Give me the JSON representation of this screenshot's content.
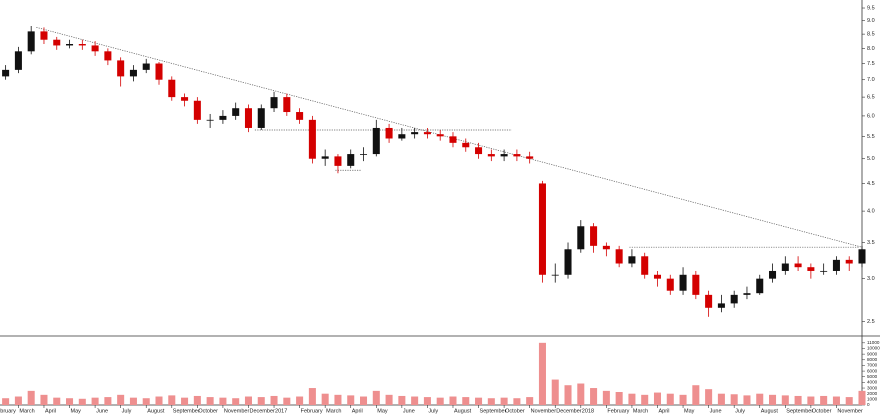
{
  "chart_data": {
    "type": "candlestick",
    "x": [
      -0.5,
      0,
      0.5,
      1,
      1.5,
      2,
      2.5,
      3,
      3.5,
      4,
      4.5,
      5,
      5.5,
      6,
      6.5,
      7,
      7.5,
      8,
      8.5,
      9,
      9.5,
      10,
      10.5,
      11,
      11.5,
      12,
      12.5,
      13,
      13.5,
      14,
      14.5,
      15,
      15.5,
      16,
      16.5,
      17,
      17.5,
      18,
      18.5,
      19,
      19.5,
      20,
      20.5,
      21,
      21.5,
      22,
      22.5,
      23,
      23.5,
      24,
      24.5,
      25,
      25.5,
      26,
      26.5,
      27,
      27.5,
      28,
      28.5,
      29,
      29.5,
      30,
      30.5,
      31,
      31.5,
      32,
      32.5,
      33
    ],
    "open": [
      7.1,
      7.3,
      7.9,
      8.6,
      8.3,
      8.1,
      8.15,
      8.1,
      7.9,
      7.6,
      7.1,
      7.3,
      7.5,
      7.0,
      6.5,
      6.4,
      5.9,
      5.9,
      6.0,
      6.2,
      5.7,
      6.2,
      6.5,
      6.1,
      5.9,
      5.0,
      5.05,
      4.85,
      5.1,
      5.1,
      5.7,
      5.45,
      5.55,
      5.6,
      5.55,
      5.5,
      5.35,
      5.25,
      5.1,
      5.05,
      5.1,
      5.05,
      4.5,
      3.05,
      3.05,
      3.4,
      3.75,
      3.45,
      3.4,
      3.2,
      3.3,
      3.05,
      3.0,
      2.85,
      3.05,
      2.8,
      2.65,
      2.7,
      2.8,
      2.82,
      3.0,
      3.1,
      3.2,
      3.15,
      3.1,
      3.1,
      3.25,
      3.2
    ],
    "high": [
      7.45,
      8.05,
      8.8,
      8.75,
      8.4,
      8.3,
      8.3,
      8.25,
      8.0,
      7.7,
      7.45,
      7.65,
      7.55,
      7.1,
      6.6,
      6.5,
      6.05,
      6.15,
      6.35,
      6.3,
      6.3,
      6.65,
      6.6,
      6.2,
      6.0,
      5.2,
      5.1,
      5.2,
      5.25,
      5.9,
      5.8,
      5.7,
      5.7,
      5.7,
      5.65,
      5.6,
      5.45,
      5.35,
      5.2,
      5.2,
      5.2,
      5.15,
      4.55,
      3.2,
      3.5,
      3.85,
      3.8,
      3.5,
      3.45,
      3.4,
      3.35,
      3.1,
      3.05,
      3.15,
      3.1,
      2.85,
      2.8,
      2.85,
      2.9,
      3.05,
      3.2,
      3.3,
      3.3,
      3.2,
      3.2,
      3.3,
      3.3,
      3.45
    ],
    "low": [
      7.0,
      7.2,
      7.8,
      8.15,
      7.95,
      8.0,
      7.95,
      7.75,
      7.45,
      6.8,
      6.95,
      7.2,
      6.85,
      6.4,
      6.25,
      5.8,
      5.7,
      5.8,
      5.9,
      5.6,
      5.65,
      6.1,
      6.0,
      5.8,
      4.9,
      4.85,
      4.7,
      4.8,
      4.95,
      5.05,
      5.35,
      5.4,
      5.45,
      5.45,
      5.4,
      5.25,
      5.15,
      5.0,
      4.95,
      4.95,
      4.95,
      4.9,
      2.95,
      2.95,
      3.0,
      3.35,
      3.35,
      3.3,
      3.15,
      3.15,
      3.0,
      2.9,
      2.8,
      2.8,
      2.75,
      2.55,
      2.6,
      2.65,
      2.75,
      2.8,
      2.95,
      3.05,
      3.1,
      3.0,
      3.05,
      3.05,
      3.1,
      3.15
    ],
    "close": [
      7.3,
      7.9,
      8.6,
      8.3,
      8.1,
      8.15,
      8.1,
      7.9,
      7.6,
      7.1,
      7.3,
      7.5,
      7.0,
      6.5,
      6.4,
      5.9,
      5.9,
      6.0,
      6.2,
      5.7,
      6.2,
      6.5,
      6.1,
      5.9,
      5.0,
      5.05,
      4.85,
      5.1,
      5.1,
      5.7,
      5.45,
      5.55,
      5.6,
      5.55,
      5.5,
      5.35,
      5.25,
      5.1,
      5.05,
      5.1,
      5.05,
      5.0,
      3.05,
      3.05,
      3.4,
      3.75,
      3.45,
      3.4,
      3.2,
      3.3,
      3.05,
      3.0,
      2.85,
      3.05,
      2.8,
      2.65,
      2.7,
      2.8,
      2.82,
      3.0,
      3.1,
      3.2,
      3.15,
      3.1,
      3.1,
      3.25,
      3.2,
      3.4
    ],
    "volume": [
      1200,
      1500,
      2500,
      1800,
      1300,
      1200,
      1100,
      1300,
      1400,
      1800,
      1300,
      1200,
      1500,
      1700,
      1300,
      1600,
      1400,
      1300,
      1200,
      1500,
      1400,
      1600,
      1300,
      1500,
      3000,
      2000,
      1800,
      1700,
      1500,
      2500,
      1800,
      1600,
      1500,
      1400,
      1300,
      1500,
      1400,
      1300,
      1200,
      1300,
      1200,
      1400,
      11000,
      4500,
      3500,
      3800,
      3000,
      2500,
      2300,
      2000,
      1800,
      2200,
      2000,
      1800,
      3500,
      2800,
      2000,
      1900,
      1700,
      2000,
      1800,
      1700,
      1600,
      1500,
      1600,
      1500,
      1400,
      2500
    ],
    "up_color": "#111111",
    "down_color": "#d40000",
    "volume_color": "#ee8f8f",
    "trendline_color": "#555555",
    "log_y": true,
    "xlim": [
      -0.72,
      33
    ],
    "ylim": [
      2.36,
      9.83
    ],
    "yticks": [
      {
        "value": 2.5,
        "label": "2.5"
      },
      {
        "value": 3,
        "label": "3.0"
      },
      {
        "value": 3.5,
        "label": "3.5"
      },
      {
        "value": 4,
        "label": "4.0"
      },
      {
        "value": 4.5,
        "label": "4.5"
      },
      {
        "value": 5,
        "label": "5.0"
      },
      {
        "value": 5.5,
        "label": "5.5"
      },
      {
        "value": 6,
        "label": "6.0"
      },
      {
        "value": 6.5,
        "label": "6.5"
      },
      {
        "value": 7,
        "label": "7.0"
      },
      {
        "value": 7.5,
        "label": "7.5"
      },
      {
        "value": 8,
        "label": "8.0"
      },
      {
        "value": 8.5,
        "label": "8.5"
      },
      {
        "value": 9,
        "label": "9.0"
      },
      {
        "value": 9.5,
        "label": "9.5"
      }
    ],
    "volume_ylim": [
      0,
      11500
    ],
    "volume_yticks": [
      0,
      1000,
      2000,
      3000,
      4000,
      5000,
      6000,
      7000,
      8000,
      9000,
      10000,
      11000
    ],
    "xticks": [
      {
        "value": -1,
        "label": "February"
      },
      {
        "value": 0,
        "label": "March"
      },
      {
        "value": 1,
        "label": "April"
      },
      {
        "value": 2,
        "label": "May"
      },
      {
        "value": 3,
        "label": "June"
      },
      {
        "value": 4,
        "label": "July"
      },
      {
        "value": 5,
        "label": "August"
      },
      {
        "value": 6,
        "label": "September"
      },
      {
        "value": 7,
        "label": "October"
      },
      {
        "value": 8,
        "label": "November"
      },
      {
        "value": 9,
        "label": "December"
      },
      {
        "value": 10,
        "label": "2017"
      },
      {
        "value": 11,
        "label": "February"
      },
      {
        "value": 12,
        "label": "March"
      },
      {
        "value": 13,
        "label": "April"
      },
      {
        "value": 14,
        "label": "May"
      },
      {
        "value": 15,
        "label": "June"
      },
      {
        "value": 16,
        "label": "July"
      },
      {
        "value": 17,
        "label": "August"
      },
      {
        "value": 18,
        "label": "September"
      },
      {
        "value": 19,
        "label": "October"
      },
      {
        "value": 20,
        "label": "November"
      },
      {
        "value": 21,
        "label": "December"
      },
      {
        "value": 22,
        "label": "2018"
      },
      {
        "value": 23,
        "label": "February"
      },
      {
        "value": 24,
        "label": "March"
      },
      {
        "value": 25,
        "label": "April"
      },
      {
        "value": 26,
        "label": "May"
      },
      {
        "value": 27,
        "label": "June"
      },
      {
        "value": 28,
        "label": "July"
      },
      {
        "value": 29,
        "label": "August"
      },
      {
        "value": 30,
        "label": "September"
      },
      {
        "value": 31,
        "label": "October"
      },
      {
        "value": 32,
        "label": "November"
      }
    ],
    "trendlines": [
      {
        "x": [
          0.7,
          33
        ],
        "y": [
          8.75,
          3.43
        ]
      },
      {
        "x": [
          9.25,
          19.3
        ],
        "y": [
          5.65,
          5.65
        ]
      },
      {
        "x": [
          12.4,
          13.4
        ],
        "y": [
          4.76,
          4.76
        ]
      },
      {
        "x": [
          23.9,
          32.9
        ],
        "y": [
          3.43,
          3.43
        ]
      }
    ]
  }
}
